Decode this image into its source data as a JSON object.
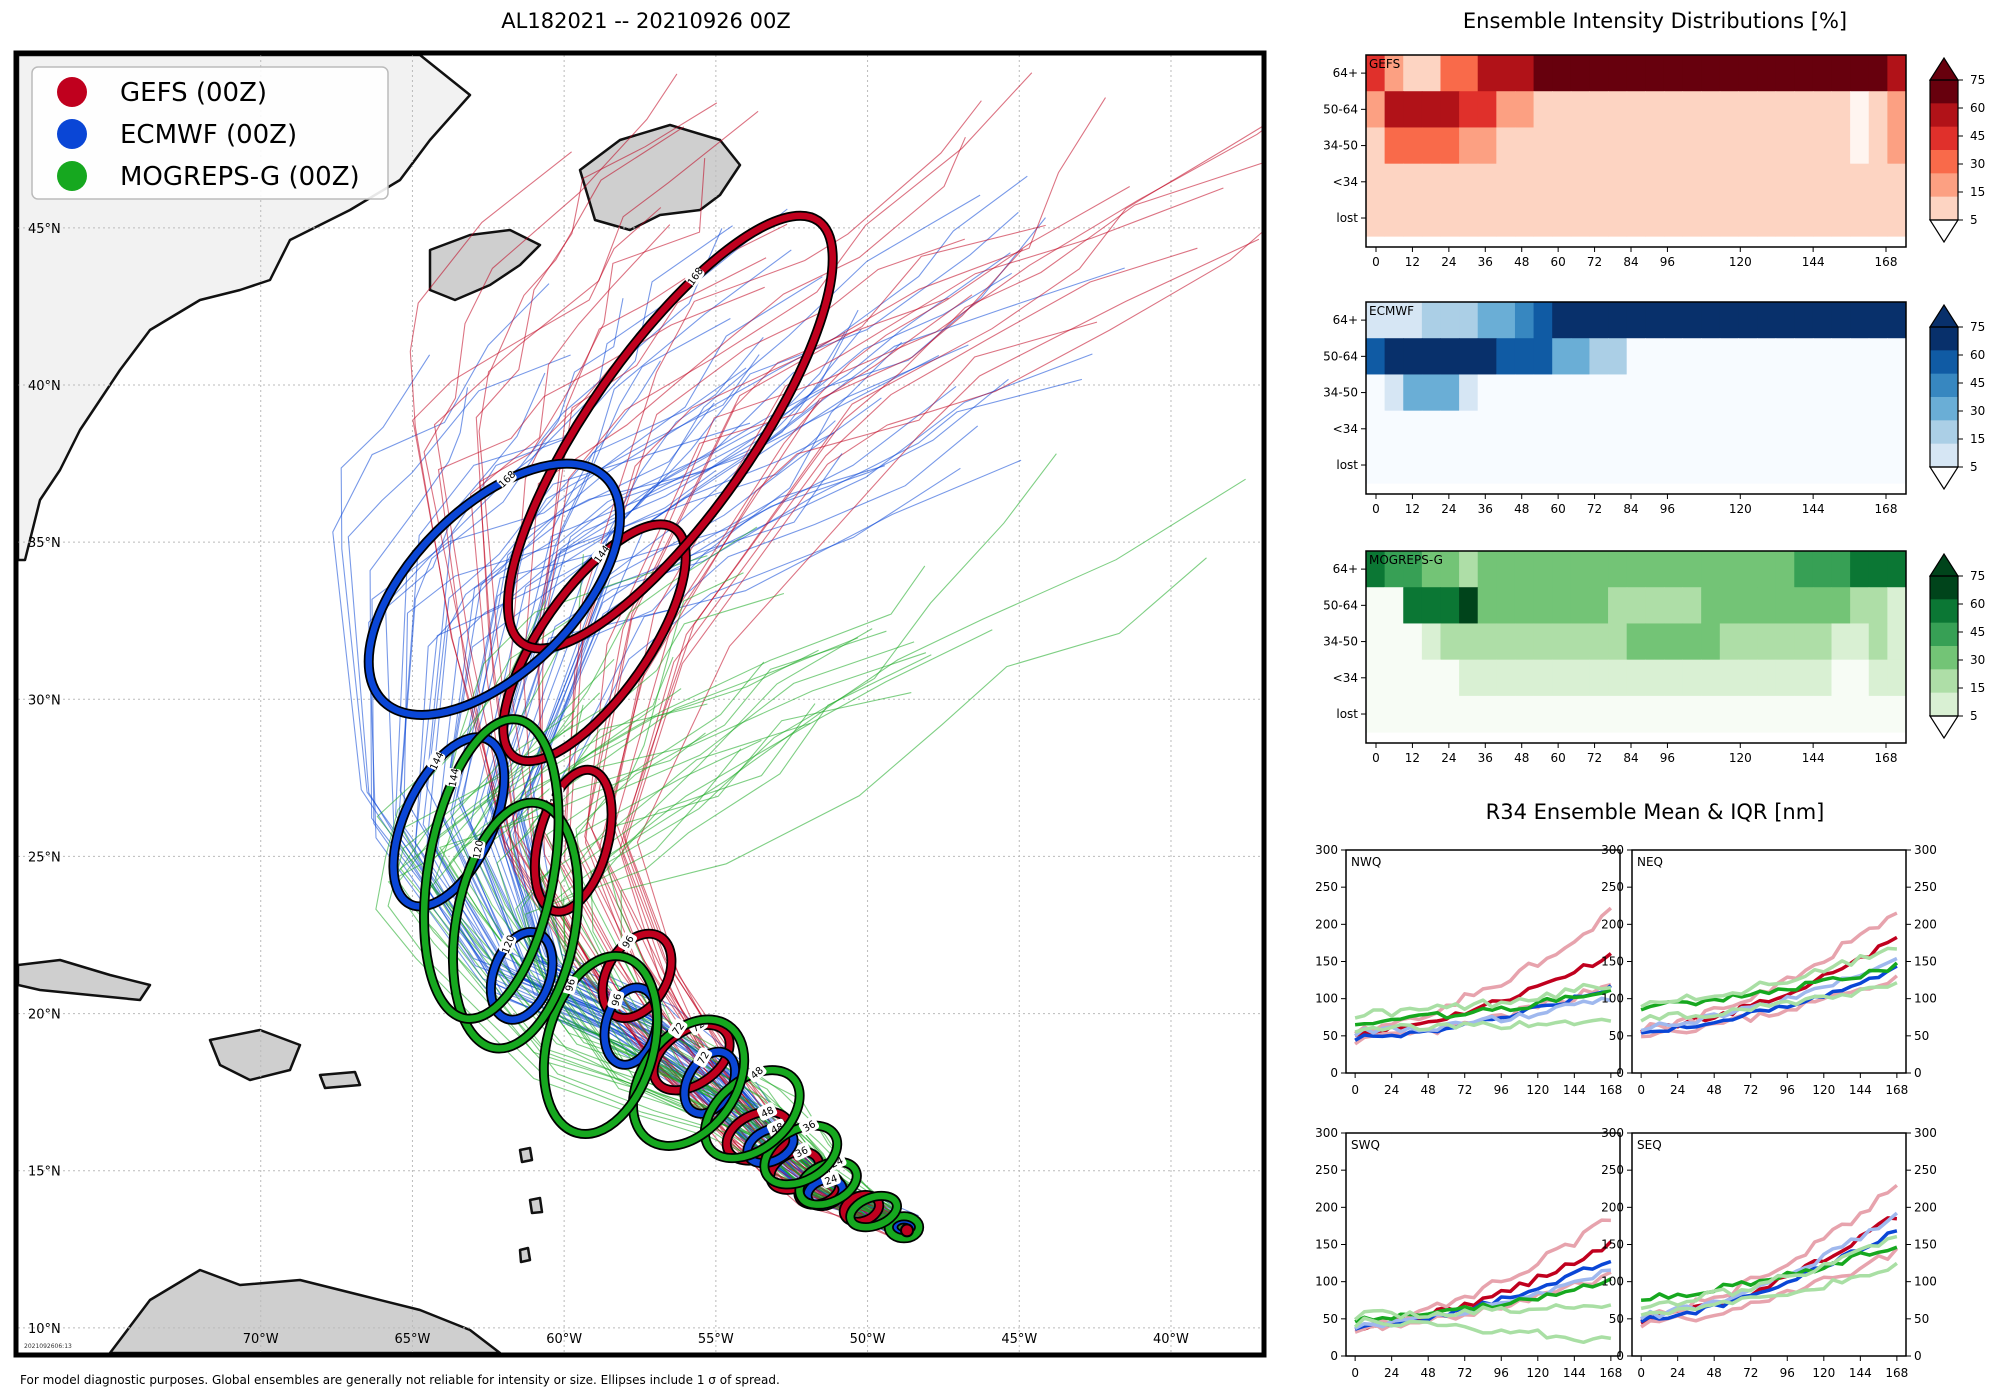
{
  "map": {
    "title": "AL182021 -- 20210926 00Z",
    "footer": "For model diagnostic purposes. Global ensembles are generally not reliable for intensity or size. Ellipses include 1 σ of spread.",
    "stamp": "2021092606:13",
    "lon_range": [
      -78,
      -37
    ],
    "lat_range": [
      9.2,
      50.5
    ],
    "lon_ticks": [
      -70,
      -65,
      -60,
      -55,
      -50,
      -45,
      -40
    ],
    "lon_labels": [
      "70°W",
      "65°W",
      "60°W",
      "55°W",
      "50°W",
      "45°W",
      "40°W"
    ],
    "lat_ticks": [
      10,
      15,
      20,
      25,
      30,
      35,
      40,
      45
    ],
    "lat_labels": [
      "10°N",
      "15°N",
      "20°N",
      "25°N",
      "30°N",
      "35°N",
      "40°N",
      "45°N"
    ],
    "legend": [
      {
        "label": "GEFS (00Z)",
        "color": "#c0001e"
      },
      {
        "label": "ECMWF (00Z)",
        "color": "#0a46d6"
      },
      {
        "label": "MOGREPS-G (00Z)",
        "color": "#16a81f"
      }
    ]
  },
  "chart_data": [
    {
      "type": "track-map",
      "title": "AL182021 -- 20210926 00Z",
      "start": {
        "lon": -48.7,
        "lat": 13.1
      },
      "ellipses": [
        {
          "model": "GEFS",
          "hour": 0,
          "lon": -48.8,
          "lat": 13.2,
          "a": 0.45,
          "b": 0.3,
          "rot": 0
        },
        {
          "model": "GEFS",
          "hour": 12,
          "lon": -50.2,
          "lat": 13.8,
          "a": 0.6,
          "b": 0.4,
          "rot": 20
        },
        {
          "model": "GEFS",
          "hour": 24,
          "lon": -51.6,
          "lat": 14.4,
          "a": 0.7,
          "b": 0.45,
          "rot": 20
        },
        {
          "model": "GEFS",
          "hour": 36,
          "lon": -52.4,
          "lat": 15.0,
          "a": 0.85,
          "b": 0.55,
          "rot": 25
        },
        {
          "model": "GEFS",
          "hour": 48,
          "lon": -53.6,
          "lat": 16.1,
          "a": 1.1,
          "b": 0.7,
          "rot": 25
        },
        {
          "model": "GEFS",
          "hour": 72,
          "lon": -55.8,
          "lat": 18.6,
          "a": 1.4,
          "b": 0.85,
          "rot": 35
        },
        {
          "model": "GEFS",
          "hour": 96,
          "lon": -57.6,
          "lat": 21.2,
          "a": 1.5,
          "b": 0.95,
          "rot": 60
        },
        {
          "model": "GEFS",
          "hour": 120,
          "lon": -59.7,
          "lat": 25.5,
          "a": 2.4,
          "b": 1.1,
          "rot": 75
        },
        {
          "model": "GEFS",
          "hour": 144,
          "lon": -59.0,
          "lat": 31.8,
          "a": 4.6,
          "b": 1.7,
          "rot": 55
        },
        {
          "model": "GEFS",
          "hour": 168,
          "lon": -56.5,
          "lat": 38.5,
          "a": 8.5,
          "b": 2.6,
          "rot": 55
        },
        {
          "model": "ECMWF",
          "hour": 0,
          "lon": -48.8,
          "lat": 13.2,
          "a": 0.35,
          "b": 0.25,
          "rot": 0
        },
        {
          "model": "ECMWF",
          "hour": 24,
          "lon": -51.4,
          "lat": 14.3,
          "a": 0.6,
          "b": 0.4,
          "rot": 20
        },
        {
          "model": "ECMWF",
          "hour": 48,
          "lon": -53.2,
          "lat": 15.8,
          "a": 0.8,
          "b": 0.5,
          "rot": 25
        },
        {
          "model": "ECMWF",
          "hour": 72,
          "lon": -55.2,
          "lat": 17.8,
          "a": 1.1,
          "b": 0.7,
          "rot": 60
        },
        {
          "model": "ECMWF",
          "hour": 96,
          "lon": -57.8,
          "lat": 19.6,
          "a": 1.3,
          "b": 0.8,
          "rot": 75
        },
        {
          "model": "ECMWF",
          "hour": 120,
          "lon": -61.4,
          "lat": 21.2,
          "a": 1.5,
          "b": 0.9,
          "rot": 70
        },
        {
          "model": "ECMWF",
          "hour": 144,
          "lon": -63.8,
          "lat": 26.1,
          "a": 3.0,
          "b": 1.4,
          "rot": 65
        },
        {
          "model": "ECMWF",
          "hour": 168,
          "lon": -62.3,
          "lat": 33.5,
          "a": 5.2,
          "b": 2.6,
          "rot": 45
        },
        {
          "model": "MOGREPS-G",
          "hour": 0,
          "lon": -48.8,
          "lat": 13.2,
          "a": 0.5,
          "b": 0.35,
          "rot": 0
        },
        {
          "model": "MOGREPS-G",
          "hour": 12,
          "lon": -49.8,
          "lat": 13.7,
          "a": 0.8,
          "b": 0.45,
          "rot": 20
        },
        {
          "model": "MOGREPS-G",
          "hour": 24,
          "lon": -51.3,
          "lat": 14.6,
          "a": 1.0,
          "b": 0.6,
          "rot": 25
        },
        {
          "model": "MOGREPS-G",
          "hour": 36,
          "lon": -52.2,
          "lat": 15.5,
          "a": 1.3,
          "b": 0.8,
          "rot": 30
        },
        {
          "model": "MOGREPS-G",
          "hour": 48,
          "lon": -53.8,
          "lat": 16.8,
          "a": 1.8,
          "b": 1.1,
          "rot": 40
        },
        {
          "model": "MOGREPS-G",
          "hour": 72,
          "lon": -55.9,
          "lat": 17.8,
          "a": 2.3,
          "b": 1.5,
          "rot": 55
        },
        {
          "model": "MOGREPS-G",
          "hour": 96,
          "lon": -58.8,
          "lat": 19.0,
          "a": 3.0,
          "b": 1.7,
          "rot": 75
        },
        {
          "model": "MOGREPS-G",
          "hour": 120,
          "lon": -61.6,
          "lat": 22.8,
          "a": 4.1,
          "b": 1.9,
          "rot": 80
        },
        {
          "model": "MOGREPS-G",
          "hour": 144,
          "lon": -62.4,
          "lat": 24.6,
          "a": 5.0,
          "b": 2.0,
          "rot": 80
        }
      ]
    },
    {
      "type": "heatmap",
      "title": "Ensemble Intensity Distributions [%]",
      "panels": [
        "GEFS",
        "ECMWF",
        "MOGREPS-G"
      ],
      "rows": [
        "64+",
        "50-64",
        "34-50",
        "<34",
        "lost"
      ],
      "xticks": [
        0,
        12,
        24,
        36,
        48,
        60,
        72,
        84,
        96,
        120,
        144,
        168
      ],
      "colorbar_ticks": [
        5,
        15,
        30,
        45,
        60,
        75
      ]
    },
    {
      "type": "line",
      "title": "R34 Ensemble Mean & IQR [nm]",
      "panels": [
        "NWQ",
        "NEQ",
        "SWQ",
        "SEQ"
      ],
      "xticks": [
        0,
        24,
        48,
        72,
        96,
        120,
        144,
        168
      ],
      "yticks": [
        0,
        50,
        100,
        150,
        200,
        250,
        300
      ],
      "ylim": [
        0,
        300
      ],
      "xlim": [
        -6,
        174
      ]
    }
  ],
  "heat": {
    "title": "Ensemble Intensity Distributions [%]",
    "panels": [
      {
        "label": "GEFS",
        "cmap": "red"
      },
      {
        "label": "ECMWF",
        "cmap": "blue"
      },
      {
        "label": "MOGREPS-G",
        "cmap": "green"
      }
    ],
    "rows": [
      "64+",
      "50-64",
      "34-50",
      "<34",
      "lost"
    ],
    "xticks": [
      "0",
      "12",
      "24",
      "36",
      "48",
      "60",
      "72",
      "84",
      "96",
      "120",
      "144",
      "168"
    ],
    "cbar_ticks": [
      "75",
      "60",
      "45",
      "30",
      "15",
      "5"
    ]
  },
  "r34": {
    "title": "R34 Ensemble Mean & IQR [nm]",
    "panels": [
      "NWQ",
      "NEQ",
      "SWQ",
      "SEQ"
    ],
    "xticks": [
      "0",
      "24",
      "48",
      "72",
      "96",
      "120",
      "144",
      "168"
    ],
    "yticks": [
      "300",
      "250",
      "200",
      "150",
      "100",
      "50",
      "0"
    ]
  }
}
